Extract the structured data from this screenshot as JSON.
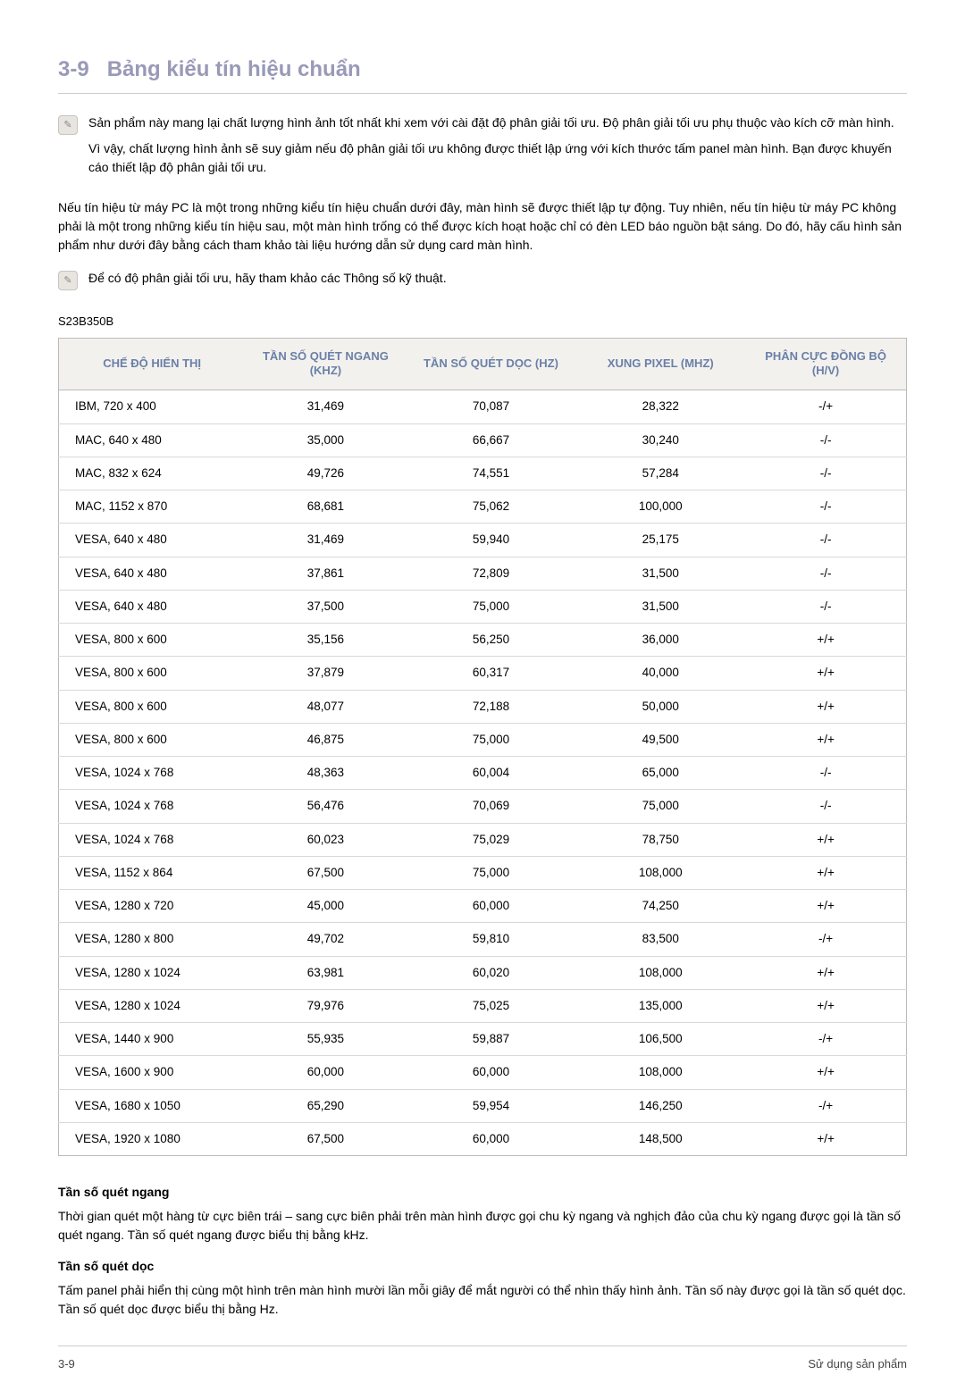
{
  "heading": {
    "number": "3-9",
    "title": "Bảng kiểu tín hiệu chuẩn"
  },
  "note1": {
    "para1": "Sản phẩm này mang lại chất lượng hình ảnh tốt nhất khi xem với cài đặt độ phân giải tối ưu. Độ phân giải tối ưu phụ thuộc vào kích cỡ màn hình.",
    "para2": "Vì vậy, chất lượng hình ảnh sẽ suy giảm nếu độ phân giải tối ưu không được thiết lập ứng với kích thước tấm panel màn hình. Bạn được khuyến cáo thiết lập độ phân giải tối ưu."
  },
  "body_para": "Nếu tín hiệu từ máy PC là một trong những kiểu tín hiệu chuẩn dưới đây, màn hình sẽ được thiết lập tự động. Tuy nhiên, nếu tín hiệu từ máy PC không phải là một trong những kiểu tín hiệu sau, một màn hình trống có thể được kích hoạt hoặc chỉ có đèn LED báo nguồn bật sáng. Do đó, hãy cấu hình sản phẩm như dưới đây bằng cách tham khảo tài liệu hướng dẫn sử dụng card màn hình.",
  "note2": "Để có độ phân giải tối ưu, hãy tham khảo các Thông số kỹ thuật.",
  "model": "S23B350B",
  "table": {
    "columns": [
      "CHẾ ĐỘ HIỂN THỊ",
      "TẦN SỐ QUÉT NGANG (KHZ)",
      "TẦN SỐ QUÉT DỌC (HZ)",
      "XUNG PIXEL (MHZ)",
      "PHÂN CỰC ĐỒNG BỘ (H/V)"
    ],
    "rows": [
      [
        "IBM, 720 x 400",
        "31,469",
        "70,087",
        "28,322",
        "-/+"
      ],
      [
        "MAC, 640 x 480",
        "35,000",
        "66,667",
        "30,240",
        "-/-"
      ],
      [
        "MAC, 832 x 624",
        "49,726",
        "74,551",
        "57,284",
        "-/-"
      ],
      [
        "MAC, 1152 x 870",
        "68,681",
        "75,062",
        "100,000",
        "-/-"
      ],
      [
        "VESA, 640 x 480",
        "31,469",
        "59,940",
        "25,175",
        "-/-"
      ],
      [
        "VESA, 640 x 480",
        "37,861",
        "72,809",
        "31,500",
        "-/-"
      ],
      [
        "VESA, 640 x 480",
        "37,500",
        "75,000",
        "31,500",
        "-/-"
      ],
      [
        "VESA, 800 x 600",
        "35,156",
        "56,250",
        "36,000",
        "+/+"
      ],
      [
        "VESA, 800 x 600",
        "37,879",
        "60,317",
        "40,000",
        "+/+"
      ],
      [
        "VESA, 800 x 600",
        "48,077",
        "72,188",
        "50,000",
        "+/+"
      ],
      [
        "VESA, 800 x 600",
        "46,875",
        "75,000",
        "49,500",
        "+/+"
      ],
      [
        "VESA, 1024 x 768",
        "48,363",
        "60,004",
        "65,000",
        "-/-"
      ],
      [
        "VESA, 1024 x 768",
        "56,476",
        "70,069",
        "75,000",
        "-/-"
      ],
      [
        "VESA, 1024 x 768",
        "60,023",
        "75,029",
        "78,750",
        "+/+"
      ],
      [
        "VESA, 1152 x 864",
        "67,500",
        "75,000",
        "108,000",
        "+/+"
      ],
      [
        "VESA, 1280 x 720",
        "45,000",
        "60,000",
        "74,250",
        "+/+"
      ],
      [
        "VESA, 1280 x 800",
        "49,702",
        "59,810",
        "83,500",
        "-/+"
      ],
      [
        "VESA, 1280 x 1024",
        "63,981",
        "60,020",
        "108,000",
        "+/+"
      ],
      [
        "VESA, 1280 x 1024",
        "79,976",
        "75,025",
        "135,000",
        "+/+"
      ],
      [
        "VESA, 1440 x 900",
        "55,935",
        "59,887",
        "106,500",
        "-/+"
      ],
      [
        "VESA, 1600 x 900",
        "60,000",
        "60,000",
        "108,000",
        "+/+"
      ],
      [
        "VESA, 1680 x 1050",
        "65,290",
        "59,954",
        "146,250",
        "-/+"
      ],
      [
        "VESA, 1920 x 1080",
        "67,500",
        "60,000",
        "148,500",
        "+/+"
      ]
    ],
    "col_widths": [
      "22%",
      "19%",
      "20%",
      "20%",
      "19%"
    ],
    "header_bg": "#f3f1ee",
    "header_color": "#6a80a8",
    "border_color": "#bbbbbb",
    "row_border_color": "#d8d8d8"
  },
  "defs": {
    "h_title": "Tần số quét ngang",
    "h_body": "Thời gian quét một hàng từ cực biên trái – sang cực biên phải trên màn hình được gọi chu kỳ ngang và nghịch đảo của chu kỳ ngang được gọi là tần số quét ngang. Tần số quét ngang được biểu thị bằng kHz.",
    "v_title": "Tần số quét dọc",
    "v_body": "Tấm panel phải hiển thị cùng một hình trên màn hình mười lần mỗi giây để mắt người có thể nhìn thấy hình ảnh. Tần số này được gọi là tần số quét dọc. Tần số quét dọc được biểu thị bằng Hz."
  },
  "footer": {
    "left": "3-9",
    "right": "Sử dụng sản phẩm"
  }
}
